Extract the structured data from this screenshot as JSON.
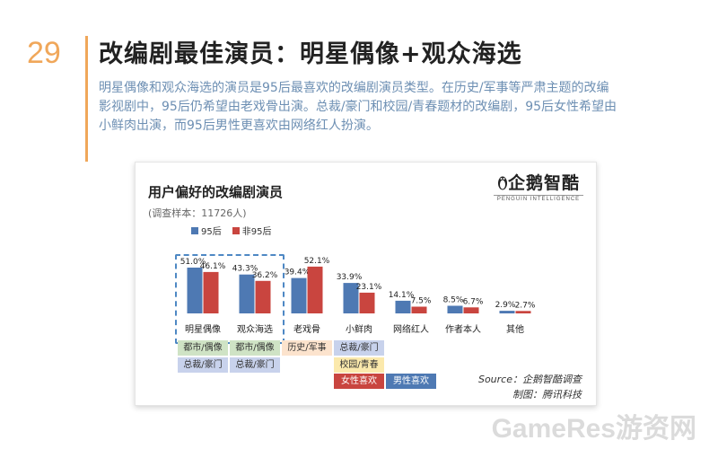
{
  "page": {
    "number": "29",
    "title": "改编剧最佳演员：明星偶像+观众海选",
    "intro_lines": [
      "明星偶像和观众海选的演员是95后最喜欢的改编剧演员类型。在历史/军事等严肃主题的改编",
      "影视剧中，95后仍希望由老戏骨出演。总裁/豪门和校园/青春题材的改编剧，95后女性希望由",
      "小鲜肉出演，而95后男性更喜欢由网络红人扮演。"
    ]
  },
  "card": {
    "title": "用户偏好的改编剧演员",
    "sample_note": "(调查样本：11726人)",
    "logo_text": "企鹅智酷",
    "logo_sub": "PENGUIN INTELLIGENCE",
    "source_line": "Source：企鹅智酷调查",
    "made_by_line": "制图：腾讯科技"
  },
  "colors": {
    "series_95": "#4e79b3",
    "series_non95": "#c9453f",
    "accent": "#f0a75a"
  },
  "chart_data": {
    "type": "bar",
    "title": "用户偏好的改编剧演员",
    "categories": [
      "明星偶像",
      "观众海选",
      "老戏骨",
      "小鲜肉",
      "网络红人",
      "作者本人",
      "其他"
    ],
    "series": [
      {
        "name": "95后",
        "values": [
          51.0,
          43.3,
          39.4,
          33.9,
          14.1,
          8.5,
          2.9
        ],
        "labels": [
          "51.0%",
          "43.3%",
          "39.4%",
          "33.9%",
          "14.1%",
          "8.5%",
          "2.9%"
        ]
      },
      {
        "name": "非95后",
        "values": [
          46.1,
          36.2,
          52.1,
          23.1,
          7.5,
          6.7,
          2.7
        ],
        "labels": [
          "46.1%",
          "36.2%",
          "52.1%",
          "23.1%",
          "7.5%",
          "6.7%",
          "2.7%"
        ]
      }
    ],
    "legend_position": "top-left",
    "grid": false
  },
  "tags": {
    "col0": [
      "都市/偶像",
      "总裁/豪门"
    ],
    "col1": [
      "都市/偶像",
      "总裁/豪门"
    ],
    "col2": [
      "历史/军事"
    ],
    "col3": [
      "总裁/豪门",
      "校园/青春",
      "女性喜欢"
    ],
    "col4": [
      "男性喜欢"
    ]
  },
  "watermark": "GameRes游资网"
}
